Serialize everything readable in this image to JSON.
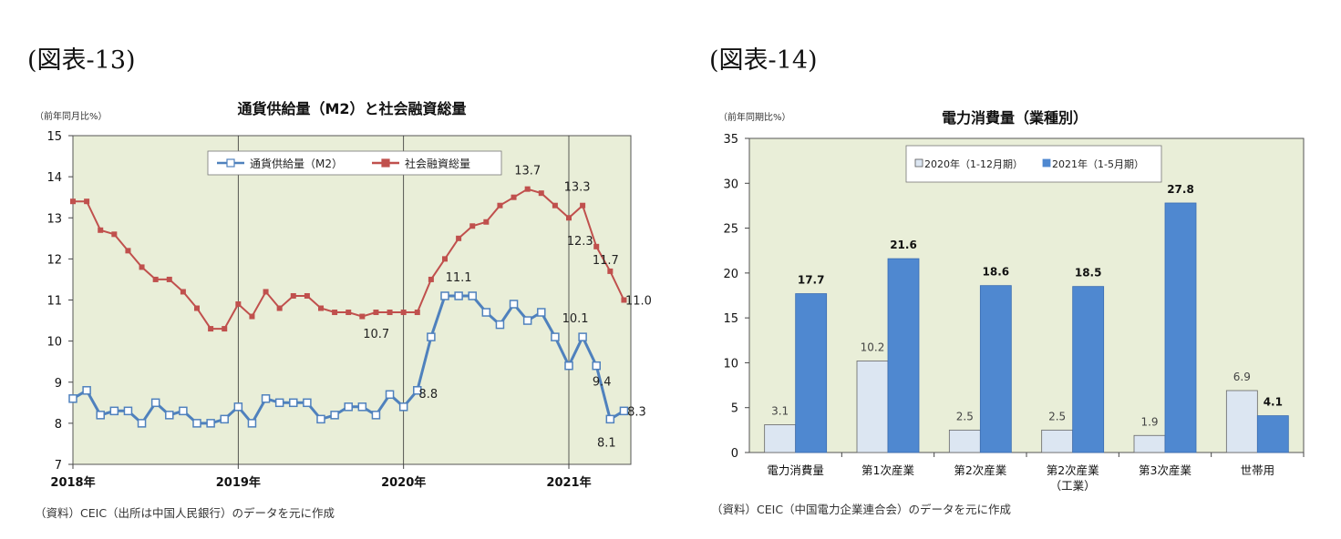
{
  "figure_left": {
    "label": "(図表-13)",
    "source": "（資料）CEIC（出所は中国人民銀行）のデータを元に作成"
  },
  "figure_right": {
    "label": "(図表-14)",
    "source": "（資料）CEIC（中国電力企業連合会）のデータを元に作成"
  },
  "colors": {
    "plot_bg": "#e9eed8",
    "m2": "#4f81bd",
    "social": "#c0504d",
    "bar2020": "#dce6f2",
    "bar2021": "#4f88d0"
  },
  "chart_data": [
    {
      "type": "line",
      "title": "通貨供給量（M2）と社会融資総量",
      "unit_label": "（前年同月比%）",
      "ylim": [
        7,
        15
      ],
      "yticks": [
        7,
        8,
        9,
        10,
        11,
        12,
        13,
        14,
        15
      ],
      "xlim": [
        0,
        40.5
      ],
      "x_tick_labels": [
        {
          "label": "2018年",
          "month_index": 0
        },
        {
          "label": "2019年",
          "month_index": 12
        },
        {
          "label": "2020年",
          "month_index": 24
        },
        {
          "label": "2021年",
          "month_index": 36
        }
      ],
      "legend_position": "top-center",
      "grid": false,
      "series": [
        {
          "name": "通貨供給量（M2）",
          "marker": "hollow-square",
          "values": [
            8.6,
            8.8,
            8.2,
            8.3,
            8.3,
            8.0,
            8.5,
            8.2,
            8.3,
            8.0,
            8.0,
            8.1,
            8.4,
            8.0,
            8.6,
            8.5,
            8.5,
            8.5,
            8.1,
            8.2,
            8.4,
            8.4,
            8.2,
            8.7,
            8.4,
            8.8,
            10.1,
            11.1,
            11.1,
            11.1,
            10.7,
            10.4,
            10.9,
            10.5,
            10.7,
            10.1,
            9.4,
            10.1,
            9.4,
            8.1,
            8.3
          ]
        },
        {
          "name": "社会融資総量",
          "marker": "filled-square",
          "values": [
            13.4,
            13.4,
            12.7,
            12.6,
            12.2,
            11.8,
            11.5,
            11.5,
            11.2,
            10.8,
            10.3,
            10.3,
            10.9,
            10.6,
            11.2,
            10.8,
            11.1,
            11.1,
            10.8,
            10.7,
            10.7,
            10.6,
            10.7,
            10.7,
            10.7,
            10.7,
            11.5,
            12.0,
            12.5,
            12.8,
            12.9,
            13.3,
            13.5,
            13.7,
            13.6,
            13.3,
            13.0,
            13.3,
            12.3,
            11.7,
            11.0
          ]
        }
      ],
      "annotations": [
        {
          "text": "10.7",
          "series": 1,
          "index": 24
        },
        {
          "text": "8.8",
          "series": 0,
          "index": 25
        },
        {
          "text": "11.1",
          "series": 0,
          "index": 28
        },
        {
          "text": "13.7",
          "series": 1,
          "index": 33
        },
        {
          "text": "10.1",
          "series": 0,
          "index": 37
        },
        {
          "text": "13.3",
          "series": 1,
          "index": 37
        },
        {
          "text": "12.3",
          "series": 1,
          "index": 38
        },
        {
          "text": "9.4",
          "series": 0,
          "index": 38
        },
        {
          "text": "11.7",
          "series": 1,
          "index": 39
        },
        {
          "text": "8.1",
          "series": 0,
          "index": 39
        },
        {
          "text": "11.0",
          "series": 1,
          "index": 40
        },
        {
          "text": "8.3",
          "series": 0,
          "index": 40
        }
      ]
    },
    {
      "type": "bar",
      "title": "電力消費量（業種別）",
      "unit_label": "（前年同期比%）",
      "ylim": [
        0,
        35
      ],
      "yticks": [
        0,
        5,
        10,
        15,
        20,
        25,
        30,
        35
      ],
      "categories": [
        "電力消費量",
        "第1次産業",
        "第2次産業",
        "第2次産業\n（工業）",
        "第3次産業",
        "世帯用"
      ],
      "legend_position": "top-center",
      "grid": false,
      "series": [
        {
          "name": "2020年（1-12月期）",
          "values": [
            3.1,
            10.2,
            2.5,
            2.5,
            1.9,
            6.9
          ],
          "labels": [
            "3.1",
            "10.2",
            "2.5",
            "2.5",
            "1.9",
            "6.9"
          ]
        },
        {
          "name": "2021年（1-5月期）",
          "values": [
            17.7,
            21.6,
            18.6,
            18.5,
            27.8,
            4.1
          ],
          "labels": [
            "17.7",
            "21.6",
            "18.6",
            "18.5",
            "27.8",
            "4.1"
          ]
        }
      ]
    }
  ]
}
